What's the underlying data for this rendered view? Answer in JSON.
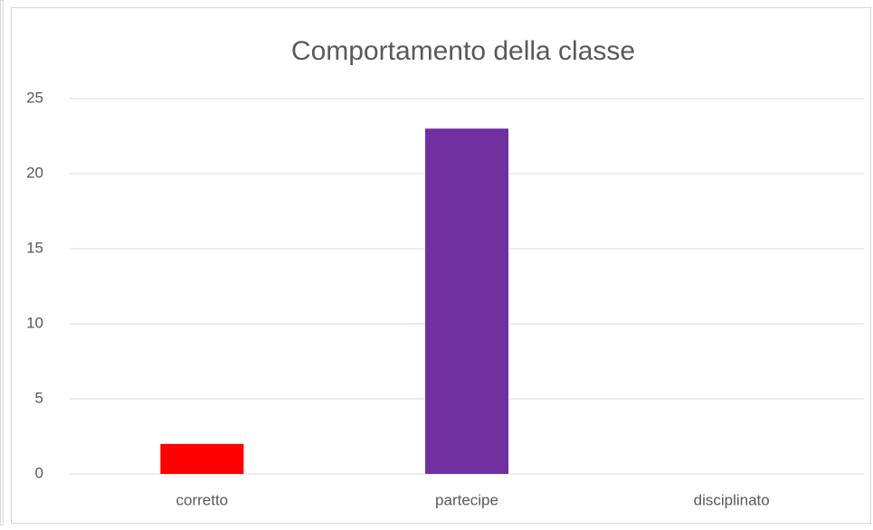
{
  "chart_data": {
    "type": "bar",
    "title": "Comportamento della classe",
    "categories": [
      "corretto",
      "partecipe",
      "disciplinato"
    ],
    "values": [
      2,
      23,
      0
    ],
    "colors": [
      "#ff0000",
      "#7030a0",
      "#7030a0"
    ],
    "ylim": [
      0,
      25
    ],
    "yticks": [
      0,
      5,
      10,
      15,
      20,
      25
    ],
    "grid": true
  }
}
